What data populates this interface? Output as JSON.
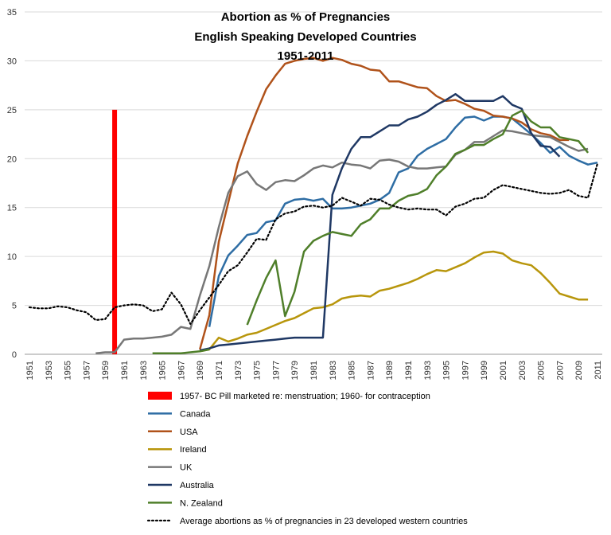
{
  "chart_data": {
    "type": "line",
    "title_lines": [
      "Abortion as % of Pregnancies",
      "English Speaking Developed Countries",
      "1951-2011"
    ],
    "xlim": [
      1951,
      2011
    ],
    "ylim": [
      0,
      35
    ],
    "y_ticks": [
      0,
      5,
      10,
      15,
      20,
      25,
      30,
      35
    ],
    "x_ticks": [
      "1951",
      "1953",
      "1955",
      "1957",
      "1959",
      "1961",
      "1963",
      "1965",
      "1967",
      "1969",
      "1971",
      "1973",
      "1975",
      "1977",
      "1979",
      "1981",
      "1983",
      "1985",
      "1987",
      "1989",
      "1991",
      "1993",
      "1995",
      "1997",
      "1999",
      "2001",
      "2003",
      "2005",
      "2007",
      "2009",
      "2011"
    ],
    "grid": "horizontal",
    "legend_position": "bottom",
    "marker_bar": {
      "name": "1957- BC Pill marketed re: menstruation; 1960- for contraception",
      "x": 1960,
      "value": 25,
      "color": "#ff0000"
    },
    "series": [
      {
        "name": "Canada",
        "color": "#2e6da4",
        "dash": "",
        "x": [
          1970,
          1971,
          1972,
          1973,
          1974,
          1975,
          1976,
          1977,
          1978,
          1979,
          1980,
          1981,
          1982,
          1983,
          1984,
          1985,
          1986,
          1987,
          1988,
          1989,
          1990,
          1991,
          1992,
          1993,
          1994,
          1995,
          1996,
          1997,
          1998,
          1999,
          2000,
          2001,
          2002,
          2003,
          2004,
          2005,
          2006,
          2007,
          2008,
          2009,
          2010,
          2011
        ],
        "y": [
          2.8,
          8,
          10.1,
          11.1,
          12.2,
          12.4,
          13.5,
          13.7,
          15.4,
          15.8,
          15.9,
          15.7,
          15.9,
          14.9,
          14.9,
          15.0,
          15.2,
          15.4,
          15.8,
          16.5,
          18.6,
          19.0,
          20.3,
          21.0,
          21.5,
          22.0,
          23.2,
          24.2,
          24.3,
          23.9,
          24.3,
          24.3,
          24.1,
          23.3,
          22.5,
          21.6,
          20.6,
          21.2,
          20.3,
          19.8,
          19.4,
          19.6
        ]
      },
      {
        "name": "USA",
        "color": "#b0521a",
        "dash": "",
        "x": [
          1969,
          1970,
          1971,
          1972,
          1973,
          1974,
          1975,
          1976,
          1977,
          1978,
          1979,
          1980,
          1981,
          1982,
          1983,
          1984,
          1985,
          1986,
          1987,
          1988,
          1989,
          1990,
          1991,
          1992,
          1993,
          1994,
          1995,
          1996,
          1997,
          1998,
          1999,
          2000,
          2001,
          2002,
          2003,
          2004,
          2005,
          2006,
          2007,
          2008
        ],
        "y": [
          0.5,
          4,
          11.5,
          15.5,
          19.5,
          22.3,
          24.8,
          27.1,
          28.5,
          29.7,
          30.0,
          30.2,
          30.3,
          30.0,
          30.3,
          30.1,
          29.7,
          29.5,
          29.1,
          29.0,
          27.9,
          27.9,
          27.6,
          27.3,
          27.2,
          26.4,
          25.9,
          26.0,
          25.6,
          25.1,
          24.9,
          24.4,
          24.3,
          24.1,
          23.7,
          23.0,
          22.6,
          22.4,
          21.9,
          21.9
        ]
      },
      {
        "name": "Ireland",
        "color": "#b8960c",
        "dash": "",
        "x": [
          1969,
          1970,
          1971,
          1972,
          1973,
          1974,
          1975,
          1976,
          1977,
          1978,
          1979,
          1980,
          1981,
          1982,
          1983,
          1984,
          1985,
          1986,
          1987,
          1988,
          1989,
          1990,
          1991,
          1992,
          1993,
          1994,
          1995,
          1996,
          1997,
          1998,
          1999,
          2000,
          2001,
          2002,
          2003,
          2004,
          2005,
          2006,
          2007,
          2008,
          2009,
          2010
        ],
        "y": [
          0.3,
          0.5,
          1.7,
          1.3,
          1.6,
          2.0,
          2.2,
          2.6,
          3.0,
          3.4,
          3.7,
          4.2,
          4.7,
          4.8,
          5.1,
          5.7,
          5.9,
          6.0,
          5.9,
          6.5,
          6.7,
          7.0,
          7.3,
          7.7,
          8.2,
          8.6,
          8.5,
          8.9,
          9.3,
          9.9,
          10.4,
          10.5,
          10.3,
          9.6,
          9.3,
          9.1,
          8.3,
          7.3,
          6.2,
          5.9,
          5.6,
          5.6
        ]
      },
      {
        "name": "UK",
        "color": "#777777",
        "dash": "",
        "x": [
          1958,
          1959,
          1960,
          1961,
          1962,
          1963,
          1964,
          1965,
          1966,
          1967,
          1968,
          1969,
          1970,
          1971,
          1972,
          1973,
          1974,
          1975,
          1976,
          1977,
          1978,
          1979,
          1980,
          1981,
          1982,
          1983,
          1984,
          1985,
          1986,
          1987,
          1988,
          1989,
          1990,
          1991,
          1992,
          1993,
          1994,
          1995,
          1996,
          1997,
          1998,
          1999,
          2000,
          2001,
          2002,
          2003,
          2004,
          2005,
          2006,
          2007,
          2008,
          2009,
          2010
        ],
        "y": [
          0.1,
          0.2,
          0.2,
          1.5,
          1.6,
          1.6,
          1.7,
          1.8,
          2.0,
          2.8,
          2.6,
          6.0,
          9.0,
          13.0,
          16.5,
          18.2,
          18.7,
          17.4,
          16.8,
          17.6,
          17.8,
          17.7,
          18.3,
          19.0,
          19.3,
          19.1,
          19.6,
          19.4,
          19.3,
          19.0,
          19.8,
          19.9,
          19.7,
          19.2,
          19.0,
          19.0,
          19.1,
          19.2,
          20.4,
          20.9,
          21.7,
          21.7,
          22.3,
          22.9,
          22.8,
          22.6,
          22.4,
          22.3,
          22.2,
          21.7,
          21.2,
          20.8,
          21.0
        ]
      },
      {
        "name": "Australia",
        "color": "#1f3864",
        "dash": "",
        "x": [
          1969,
          1970,
          1971,
          1972,
          1973,
          1974,
          1975,
          1976,
          1977,
          1978,
          1979,
          1980,
          1981,
          1982,
          1983,
          1984,
          1985,
          1986,
          1987,
          1988,
          1989,
          1990,
          1991,
          1992,
          1993,
          1994,
          1995,
          1996,
          1997,
          1998,
          1999,
          2000,
          2001,
          2002,
          2003,
          2004,
          2005,
          2006,
          2007
        ],
        "y": [
          0.4,
          0.6,
          0.9,
          1.0,
          1.1,
          1.2,
          1.3,
          1.4,
          1.5,
          1.6,
          1.7,
          1.7,
          1.7,
          1.7,
          16.3,
          19.0,
          21.0,
          22.2,
          22.2,
          22.8,
          23.4,
          23.4,
          24.0,
          24.3,
          24.8,
          25.5,
          26.0,
          26.6,
          25.9,
          25.9,
          25.9,
          25.9,
          26.4,
          25.5,
          25.1,
          22.6,
          21.3,
          21.2,
          20.2
        ]
      },
      {
        "name": "N. Zealand",
        "color": "#4f7f2a",
        "dash": "",
        "x": [
          1964,
          1965,
          1966,
          1967,
          1968,
          1969,
          1970
        ],
        "y": [
          0.1,
          0.1,
          0.1,
          0.1,
          0.2,
          0.3,
          0.5
        ]
      },
      {
        "name": "N. Zealand",
        "color": "#4f7f2a",
        "dash": "",
        "x": [
          1974,
          1975,
          1976,
          1977,
          1978,
          1979,
          1980,
          1981,
          1982,
          1983,
          1984,
          1985,
          1986,
          1987,
          1988,
          1989,
          1990,
          1991,
          1992,
          1993,
          1994,
          1995,
          1996,
          1997,
          1998,
          1999,
          2000,
          2001,
          2002,
          2003,
          2004,
          2005,
          2006,
          2007,
          2008,
          2009,
          2010
        ],
        "y": [
          3.0,
          5.5,
          7.8,
          9.6,
          3.9,
          6.4,
          10.5,
          11.6,
          12.1,
          12.5,
          12.3,
          12.1,
          13.3,
          13.8,
          14.9,
          14.9,
          15.7,
          16.2,
          16.4,
          16.9,
          18.3,
          19.2,
          20.5,
          20.9,
          21.4,
          21.4,
          22.0,
          22.5,
          24.4,
          24.9,
          23.8,
          23.2,
          23.2,
          22.2,
          22.0,
          21.8,
          20.6
        ]
      },
      {
        "name": "Average abortions as % of pregnancies in 23 developed western countries",
        "color": "#000000",
        "dash": "2,3",
        "x": [
          1951,
          1952,
          1953,
          1954,
          1955,
          1956,
          1957,
          1958,
          1959,
          1960,
          1961,
          1962,
          1963,
          1964,
          1965,
          1966,
          1967,
          1968,
          1969,
          1970,
          1971,
          1972,
          1973,
          1974,
          1975,
          1976,
          1977,
          1978,
          1979,
          1980,
          1981,
          1982,
          1983,
          1984,
          1985,
          1986,
          1987,
          1988,
          1989,
          1990,
          1991,
          1992,
          1993,
          1994,
          1995,
          1996,
          1997,
          1998,
          1999,
          2000,
          2001,
          2002,
          2003,
          2004,
          2005,
          2006,
          2007,
          2008,
          2009,
          2010,
          2011
        ],
        "y": [
          4.8,
          4.7,
          4.7,
          4.9,
          4.8,
          4.5,
          4.3,
          3.5,
          3.6,
          4.8,
          5.0,
          5.1,
          5.0,
          4.4,
          4.6,
          6.3,
          5.1,
          3.1,
          4.5,
          5.8,
          7.1,
          8.5,
          9.1,
          10.4,
          11.8,
          11.7,
          13.8,
          14.4,
          14.6,
          15.1,
          15.2,
          15.0,
          15.2,
          16.0,
          15.6,
          15.2,
          15.9,
          15.8,
          15.3,
          15.0,
          14.8,
          14.9,
          14.8,
          14.8,
          14.2,
          15.1,
          15.4,
          15.9,
          16.0,
          16.8,
          17.3,
          17.1,
          16.9,
          16.7,
          16.5,
          16.4,
          16.5,
          16.8,
          16.2,
          16.0,
          19.5
        ]
      }
    ],
    "legend": [
      {
        "label": "1957- BC Pill marketed re: menstruation; 1960- for contraception",
        "color": "#ff0000",
        "style": "bar"
      },
      {
        "label": "Canada",
        "color": "#2e6da4",
        "style": "line"
      },
      {
        "label": "USA",
        "color": "#b0521a",
        "style": "line"
      },
      {
        "label": "Ireland",
        "color": "#b8960c",
        "style": "line"
      },
      {
        "label": "UK",
        "color": "#777777",
        "style": "line"
      },
      {
        "label": "Australia",
        "color": "#1f3864",
        "style": "line"
      },
      {
        "label": "N. Zealand",
        "color": "#4f7f2a",
        "style": "line"
      },
      {
        "label": "Average abortions as % of pregnancies in 23 developed western countries",
        "color": "#000000",
        "style": "dotted"
      }
    ]
  }
}
